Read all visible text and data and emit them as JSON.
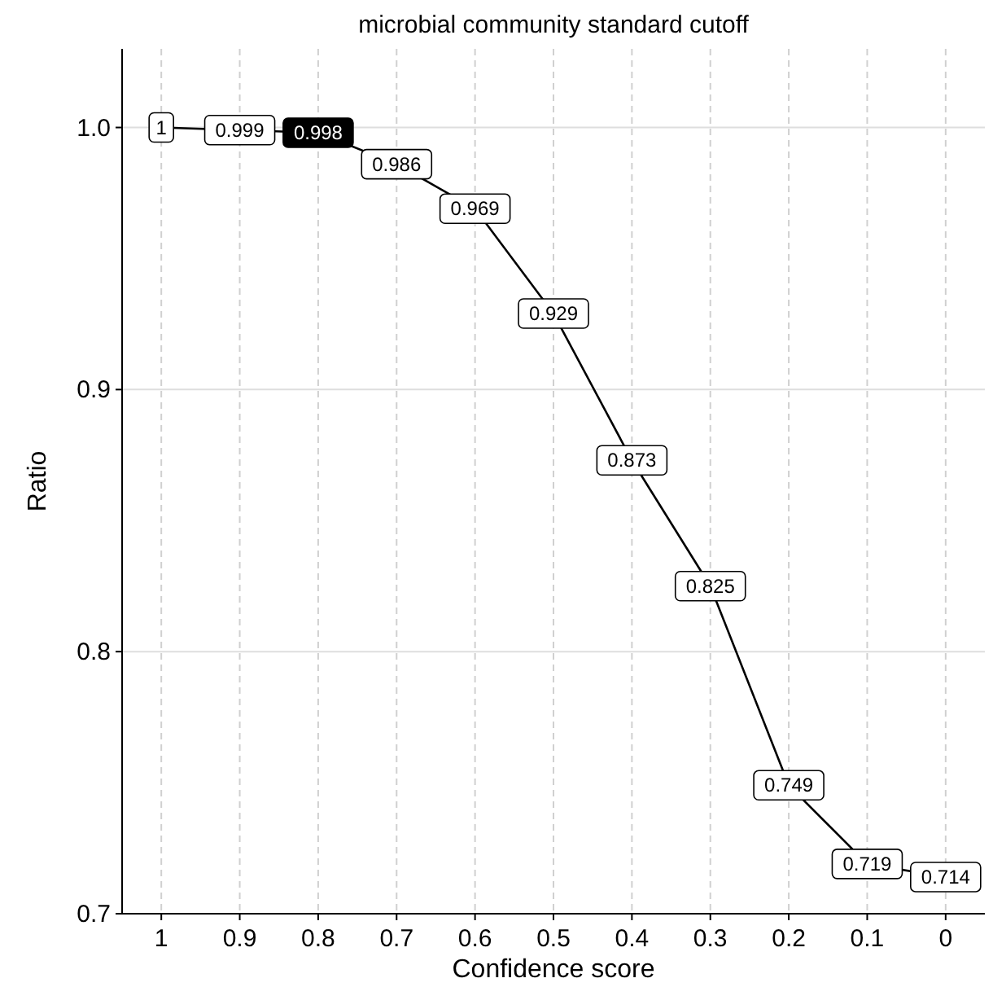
{
  "chart_data": {
    "type": "line",
    "title": "microbial community standard cutoff",
    "xlabel": "Confidence score",
    "ylabel": "Ratio",
    "x": [
      1,
      0.9,
      0.8,
      0.7,
      0.6,
      0.5,
      0.4,
      0.3,
      0.2,
      0.1,
      0
    ],
    "series": [
      {
        "color": "#000000",
        "values": [
          1,
          0.999,
          0.998,
          0.986,
          0.969,
          0.929,
          0.873,
          0.825,
          0.749,
          0.719,
          0.714
        ],
        "value_labels": [
          "1",
          "0.999",
          null,
          "0.986",
          "0.969",
          "0.929",
          "0.873",
          "0.825",
          "0.749",
          "0.719",
          "0.714"
        ]
      }
    ],
    "annotations": [
      {
        "text": "0.998",
        "x": 0.8,
        "y": 0.998
      }
    ],
    "xlim": [
      1.05,
      -0.05
    ],
    "xticks": [
      1,
      {
        "value": 0.9,
        "label": "0.9"
      },
      {
        "value": 0.8,
        "label": "0.8"
      },
      {
        "value": 0.7,
        "label": "0.7"
      },
      {
        "value": 0.6,
        "label": "0.6"
      },
      {
        "value": 0.5,
        "label": "0.5"
      },
      {
        "value": 0.4,
        "label": "0.4"
      },
      {
        "value": 0.3,
        "label": "0.3"
      },
      {
        "value": 0.2,
        "label": "0.2"
      },
      {
        "value": 0.1,
        "label": "0.1"
      },
      0
    ],
    "ylim": [
      0.7,
      1.03
    ],
    "yticks": [
      {
        "value": 0.7,
        "label": "0.7"
      },
      {
        "value": 0.8,
        "label": "0.8"
      },
      {
        "value": 0.9,
        "label": "0.9"
      },
      {
        "value": 1,
        "label": "1.0"
      }
    ],
    "grid": true,
    "line_style": "solid",
    "marker": "square"
  }
}
